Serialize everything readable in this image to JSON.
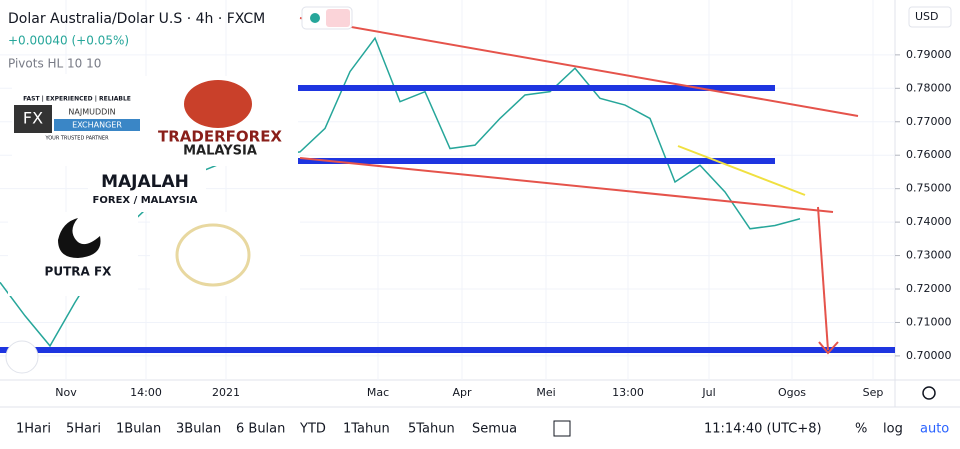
{
  "header": {
    "symbol": "Dolar Australia/Dolar U.S · 4h · FXCM",
    "change": "+0.00040 (+0.05%)",
    "indicator": "Pivots HL 10 10",
    "currency": "USD"
  },
  "logos": {
    "najmuddin_tagline": "FAST | EXPERIENCED | RELIABLE",
    "najmuddin_fx": "FX",
    "najmuddin_name": "NAJMUDDIN",
    "najmuddin_sub": "EXCHANGER",
    "najmuddin_slogan": "YOUR TRUSTED PARTNER",
    "traderforex": "TRADERFOREX",
    "traderforex_sub": "MALAYSIA",
    "majalah": "MAJALAH",
    "majalah_sub": "FOREX / MALAYSIA",
    "putra": "PUTRA FX"
  },
  "chart_data": {
    "type": "line",
    "color": "#26a69a",
    "values": [
      0.722,
      0.712,
      0.703,
      0.716,
      0.728,
      0.738,
      0.745,
      0.75,
      0.755,
      0.758,
      0.76,
      0.76,
      0.761,
      0.768,
      0.785,
      0.795,
      0.776,
      0.779,
      0.762,
      0.763,
      0.771,
      0.778,
      0.779,
      0.786,
      0.777,
      0.775,
      0.771,
      0.752,
      0.757,
      0.749,
      0.738,
      0.739,
      0.741
    ],
    "ylim": [
      0.6928,
      0.8064
    ],
    "yticks": [
      {
        "value": 0.7,
        "label": "0.70000"
      },
      {
        "value": 0.71,
        "label": "0.71000"
      },
      {
        "value": 0.72,
        "label": "0.72000"
      },
      {
        "value": 0.73,
        "label": "0.73000"
      },
      {
        "value": 0.74,
        "label": "0.74000"
      },
      {
        "value": 0.75,
        "label": "0.75000"
      },
      {
        "value": 0.76,
        "label": "0.76000"
      },
      {
        "value": 0.77,
        "label": "0.77000"
      },
      {
        "value": 0.78,
        "label": "0.78000"
      },
      {
        "value": 0.79,
        "label": "0.79000"
      }
    ],
    "xlabels": [
      "Nov",
      "14:00",
      "2021",
      "Mac",
      "Apr",
      "Mei",
      "13:00",
      "Jul",
      "Ogos",
      "Sep"
    ]
  },
  "toolbar": {
    "ranges": [
      "1Hari",
      "5Hari",
      "1Bulan",
      "3Bulan",
      "6 Bulan",
      "YTD",
      "1Tahun",
      "5Tahun",
      "Semua"
    ],
    "time": "11:14:40 (UTC+8)",
    "percent": "%",
    "log": "log",
    "auto": "auto"
  }
}
